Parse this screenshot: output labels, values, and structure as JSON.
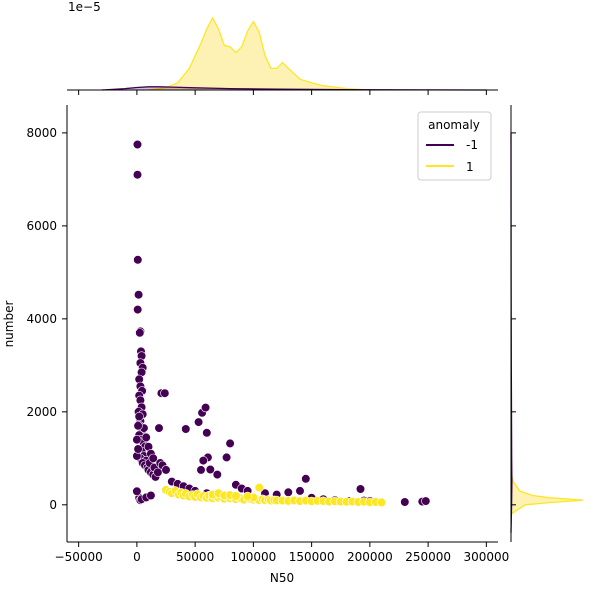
{
  "chart_data": {
    "type": "scatter",
    "xlabel": "N50",
    "ylabel": "number",
    "xlim": [
      -60000,
      310000
    ],
    "ylim": [
      -800,
      8600
    ],
    "x_ticks": [
      -50000,
      0,
      50000,
      100000,
      150000,
      200000,
      250000,
      300000
    ],
    "x_tick_labels": [
      "−50000",
      "0",
      "50000",
      "100000",
      "150000",
      "200000",
      "250000",
      "300000"
    ],
    "y_ticks": [
      0,
      2000,
      4000,
      6000,
      8000
    ],
    "y_tick_labels": [
      "0",
      "2000",
      "4000",
      "6000",
      "8000"
    ],
    "marginal_y_scale_label": "1e−5",
    "grid": false,
    "legend": {
      "title": "anomaly",
      "position": "top-right",
      "entries": [
        "-1",
        "1"
      ]
    },
    "colors": {
      "-1": "#440154",
      "1": "#fde725",
      "1_fill": "#fdf2b4"
    },
    "series": [
      {
        "name": "-1",
        "points": [
          [
            500,
            7750
          ],
          [
            500,
            7100
          ],
          [
            800,
            5270
          ],
          [
            1500,
            4520
          ],
          [
            700,
            4200
          ],
          [
            3000,
            3730
          ],
          [
            2500,
            3700
          ],
          [
            3500,
            3300
          ],
          [
            4000,
            3200
          ],
          [
            3000,
            3050
          ],
          [
            5000,
            2950
          ],
          [
            4000,
            2850
          ],
          [
            2000,
            2700
          ],
          [
            3000,
            2550
          ],
          [
            4500,
            2450
          ],
          [
            2000,
            2350
          ],
          [
            3000,
            2250
          ],
          [
            4000,
            2100
          ],
          [
            1500,
            2000
          ],
          [
            5000,
            1950
          ],
          [
            3000,
            1800
          ],
          [
            2500,
            1700
          ],
          [
            6000,
            1650
          ],
          [
            4000,
            1550
          ],
          [
            2000,
            1500
          ],
          [
            3500,
            1400
          ],
          [
            5500,
            1350
          ],
          [
            7000,
            1250
          ],
          [
            4000,
            1150
          ],
          [
            6000,
            1050
          ],
          [
            3000,
            1000
          ],
          [
            8000,
            950
          ],
          [
            5000,
            900
          ],
          [
            7000,
            850
          ],
          [
            9000,
            800
          ],
          [
            10000,
            750
          ],
          [
            11000,
            900
          ],
          [
            12000,
            700
          ],
          [
            14000,
            650
          ],
          [
            15000,
            800
          ],
          [
            16000,
            600
          ],
          [
            18000,
            700
          ],
          [
            20000,
            900
          ],
          [
            22000,
            850
          ],
          [
            25000,
            750
          ],
          [
            6000,
            1650
          ],
          [
            8000,
            1450
          ],
          [
            10000,
            1250
          ],
          [
            12000,
            1100
          ],
          [
            14000,
            1000
          ],
          [
            19000,
            1650
          ],
          [
            21000,
            2400
          ],
          [
            24000,
            2400
          ],
          [
            42000,
            1630
          ],
          [
            53000,
            1780
          ],
          [
            56000,
            1980
          ],
          [
            59000,
            2090
          ],
          [
            60000,
            1550
          ],
          [
            80000,
            1320
          ],
          [
            77000,
            1020
          ],
          [
            61000,
            1020
          ],
          [
            57000,
            950
          ],
          [
            63000,
            760
          ],
          [
            69000,
            650
          ],
          [
            55000,
            750
          ],
          [
            0,
            1050
          ],
          [
            1000,
            1700
          ],
          [
            2000,
            1900
          ],
          [
            0,
            1400
          ],
          [
            1000,
            1200
          ],
          [
            2000,
            150
          ],
          [
            3000,
            100
          ],
          [
            4000,
            120
          ],
          [
            0,
            290
          ],
          [
            8000,
            160
          ],
          [
            12000,
            200
          ],
          [
            30000,
            500
          ],
          [
            35000,
            450
          ],
          [
            40000,
            400
          ],
          [
            45000,
            350
          ],
          [
            50000,
            300
          ],
          [
            60000,
            250
          ],
          [
            70000,
            250
          ],
          [
            85000,
            430
          ],
          [
            90000,
            350
          ],
          [
            95000,
            300
          ],
          [
            110000,
            250
          ],
          [
            120000,
            220
          ],
          [
            130000,
            270
          ],
          [
            140000,
            300
          ],
          [
            145000,
            560
          ],
          [
            150000,
            150
          ],
          [
            160000,
            120
          ],
          [
            170000,
            100
          ],
          [
            182000,
            80
          ],
          [
            192000,
            340
          ],
          [
            195000,
            90
          ],
          [
            200000,
            80
          ],
          [
            205000,
            70
          ],
          [
            210000,
            60
          ],
          [
            230000,
            60
          ],
          [
            245000,
            70
          ],
          [
            248000,
            80
          ]
        ]
      },
      {
        "name": "1",
        "points": [
          [
            25000,
            320
          ],
          [
            28000,
            280
          ],
          [
            30000,
            250
          ],
          [
            33000,
            300
          ],
          [
            36000,
            220
          ],
          [
            38000,
            260
          ],
          [
            40000,
            200
          ],
          [
            42000,
            240
          ],
          [
            45000,
            180
          ],
          [
            48000,
            210
          ],
          [
            50000,
            170
          ],
          [
            52000,
            230
          ],
          [
            55000,
            160
          ],
          [
            57000,
            190
          ],
          [
            60000,
            150
          ],
          [
            62000,
            200
          ],
          [
            65000,
            140
          ],
          [
            67000,
            180
          ],
          [
            70000,
            150
          ],
          [
            72000,
            170
          ],
          [
            75000,
            130
          ],
          [
            78000,
            160
          ],
          [
            80000,
            140
          ],
          [
            82000,
            170
          ],
          [
            85000,
            120
          ],
          [
            88000,
            150
          ],
          [
            90000,
            130
          ],
          [
            92000,
            110
          ],
          [
            95000,
            140
          ],
          [
            98000,
            120
          ],
          [
            100000,
            110
          ],
          [
            102000,
            130
          ],
          [
            105000,
            100
          ],
          [
            108000,
            120
          ],
          [
            110000,
            100
          ],
          [
            113000,
            110
          ],
          [
            115000,
            90
          ],
          [
            118000,
            100
          ],
          [
            120000,
            95
          ],
          [
            125000,
            90
          ],
          [
            130000,
            85
          ],
          [
            135000,
            95
          ],
          [
            140000,
            80
          ],
          [
            145000,
            90
          ],
          [
            150000,
            75
          ],
          [
            155000,
            85
          ],
          [
            160000,
            80
          ],
          [
            165000,
            70
          ],
          [
            170000,
            75
          ],
          [
            175000,
            70
          ],
          [
            180000,
            65
          ],
          [
            185000,
            70
          ],
          [
            190000,
            60
          ],
          [
            195000,
            65
          ],
          [
            200000,
            55
          ],
          [
            205000,
            60
          ],
          [
            210000,
            50
          ],
          [
            65000,
            220
          ],
          [
            70000,
            250
          ],
          [
            75000,
            200
          ],
          [
            80000,
            210
          ],
          [
            85000,
            190
          ],
          [
            100000,
            160
          ],
          [
            105000,
            370
          ],
          [
            95000,
            180
          ]
        ]
      }
    ],
    "marginal_x_density": {
      "series": [
        {
          "name": "1",
          "x": [
            10000,
            25000,
            35000,
            45000,
            55000,
            60000,
            65000,
            70000,
            75000,
            80000,
            85000,
            90000,
            95000,
            100000,
            105000,
            110000,
            115000,
            120000,
            125000,
            130000,
            140000,
            150000,
            160000,
            170000,
            180000,
            190000,
            200000
          ],
          "y": [
            0.0,
            0.03,
            0.1,
            0.3,
            0.65,
            0.85,
            1.0,
            0.85,
            0.62,
            0.6,
            0.52,
            0.6,
            0.82,
            0.95,
            0.8,
            0.48,
            0.3,
            0.3,
            0.38,
            0.3,
            0.15,
            0.1,
            0.06,
            0.04,
            0.02,
            0.01,
            0.0
          ]
        },
        {
          "name": "-1",
          "x": [
            -30000,
            -10000,
            0,
            10000,
            20000,
            30000,
            50000,
            80000,
            120000,
            180000,
            250000,
            300000
          ],
          "y": [
            0.0,
            0.02,
            0.035,
            0.045,
            0.045,
            0.04,
            0.03,
            0.02,
            0.012,
            0.006,
            0.002,
            0.0
          ]
        }
      ]
    },
    "marginal_y_density": {
      "series": [
        {
          "name": "1",
          "y": [
            -200,
            0,
            50,
            100,
            150,
            200,
            300,
            500,
            700
          ],
          "x": [
            0.0,
            0.2,
            0.55,
            1.0,
            0.55,
            0.3,
            0.12,
            0.03,
            0.0
          ]
        },
        {
          "name": "-1",
          "y": [
            -600,
            0,
            500,
            1000,
            2000,
            3000,
            5000,
            8000
          ],
          "x": [
            0.0,
            0.008,
            0.012,
            0.01,
            0.007,
            0.004,
            0.002,
            0.0
          ]
        }
      ]
    }
  }
}
